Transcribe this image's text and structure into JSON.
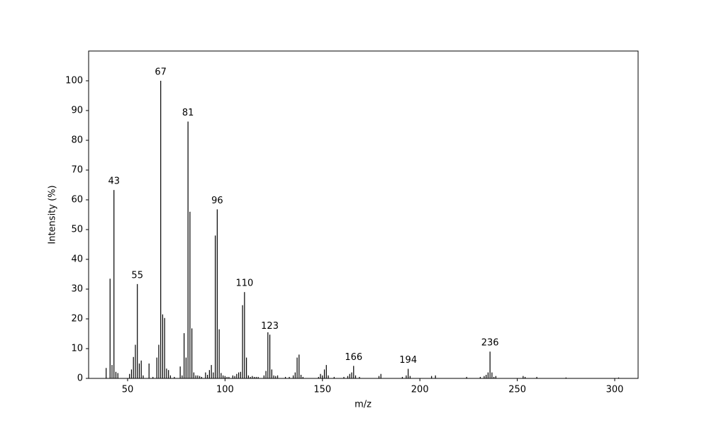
{
  "chart_data": {
    "type": "bar",
    "x": [
      39,
      41,
      42,
      43,
      44,
      45,
      51,
      52,
      53,
      54,
      55,
      56,
      57,
      58,
      61,
      63,
      65,
      66,
      67,
      68,
      69,
      70,
      71,
      72,
      74,
      77,
      78,
      79,
      80,
      81,
      82,
      83,
      84,
      85,
      86,
      87,
      88,
      90,
      91,
      92,
      93,
      94,
      95,
      96,
      97,
      98,
      99,
      100,
      101,
      102,
      104,
      105,
      106,
      107,
      108,
      109,
      110,
      111,
      112,
      113,
      114,
      115,
      116,
      117,
      120,
      121,
      122,
      123,
      124,
      125,
      126,
      127,
      131,
      133,
      135,
      136,
      137,
      138,
      139,
      140,
      148,
      149,
      150,
      151,
      152,
      153,
      156,
      161,
      163,
      164,
      165,
      166,
      167,
      169,
      179,
      180,
      191,
      193,
      194,
      195,
      206,
      208,
      224,
      231,
      233,
      234,
      235,
      236,
      237,
      238,
      239,
      253,
      254,
      260,
      275,
      302
    ],
    "values": [
      3.5,
      33.5,
      4.5,
      63.3,
      2.2,
      1.8,
      1.5,
      3,
      7.2,
      11.3,
      31.7,
      5,
      6,
      1,
      5,
      0.5,
      7,
      11.3,
      100,
      21.5,
      20.3,
      3.3,
      2.8,
      1,
      0.5,
      4,
      1,
      15.2,
      7,
      86.3,
      56,
      16.8,
      2,
      1,
      1,
      0.8,
      0.5,
      2,
      1.2,
      2.8,
      4.5,
      2,
      48,
      56.8,
      16.5,
      1.8,
      1,
      0.8,
      0.5,
      0.5,
      1,
      0.8,
      1.5,
      2,
      2.2,
      24.6,
      29,
      7,
      1,
      0.5,
      0.8,
      0.5,
      0.5,
      0.5,
      1,
      2.5,
      15.5,
      14.7,
      3,
      1,
      0.8,
      1,
      0.5,
      0.5,
      1,
      2,
      7,
      8,
      1.2,
      0.5,
      0.5,
      1.5,
      1,
      3,
      4.5,
      1,
      0.5,
      0.5,
      0.8,
      1.5,
      2,
      4.2,
      1,
      0.5,
      0.8,
      1.5,
      0.5,
      1,
      3.2,
      0.8,
      0.8,
      1,
      0.5,
      0.5,
      0.8,
      1.2,
      2,
      9,
      2,
      0.5,
      0.8,
      0.8,
      0.5,
      0.5,
      0.3,
      0.3
    ],
    "color": "#000000",
    "labeled_peaks": [
      43,
      55,
      67,
      81,
      96,
      110,
      123,
      166,
      194,
      236
    ],
    "x_label": "m/z",
    "y_label": "Intensity (%)",
    "xlim": [
      30,
      312
    ],
    "ylim": [
      0,
      110
    ],
    "xticks": [
      50,
      100,
      150,
      200,
      250,
      300
    ],
    "yticks": [
      0,
      10,
      20,
      30,
      40,
      50,
      60,
      70,
      80,
      90,
      100
    ]
  }
}
